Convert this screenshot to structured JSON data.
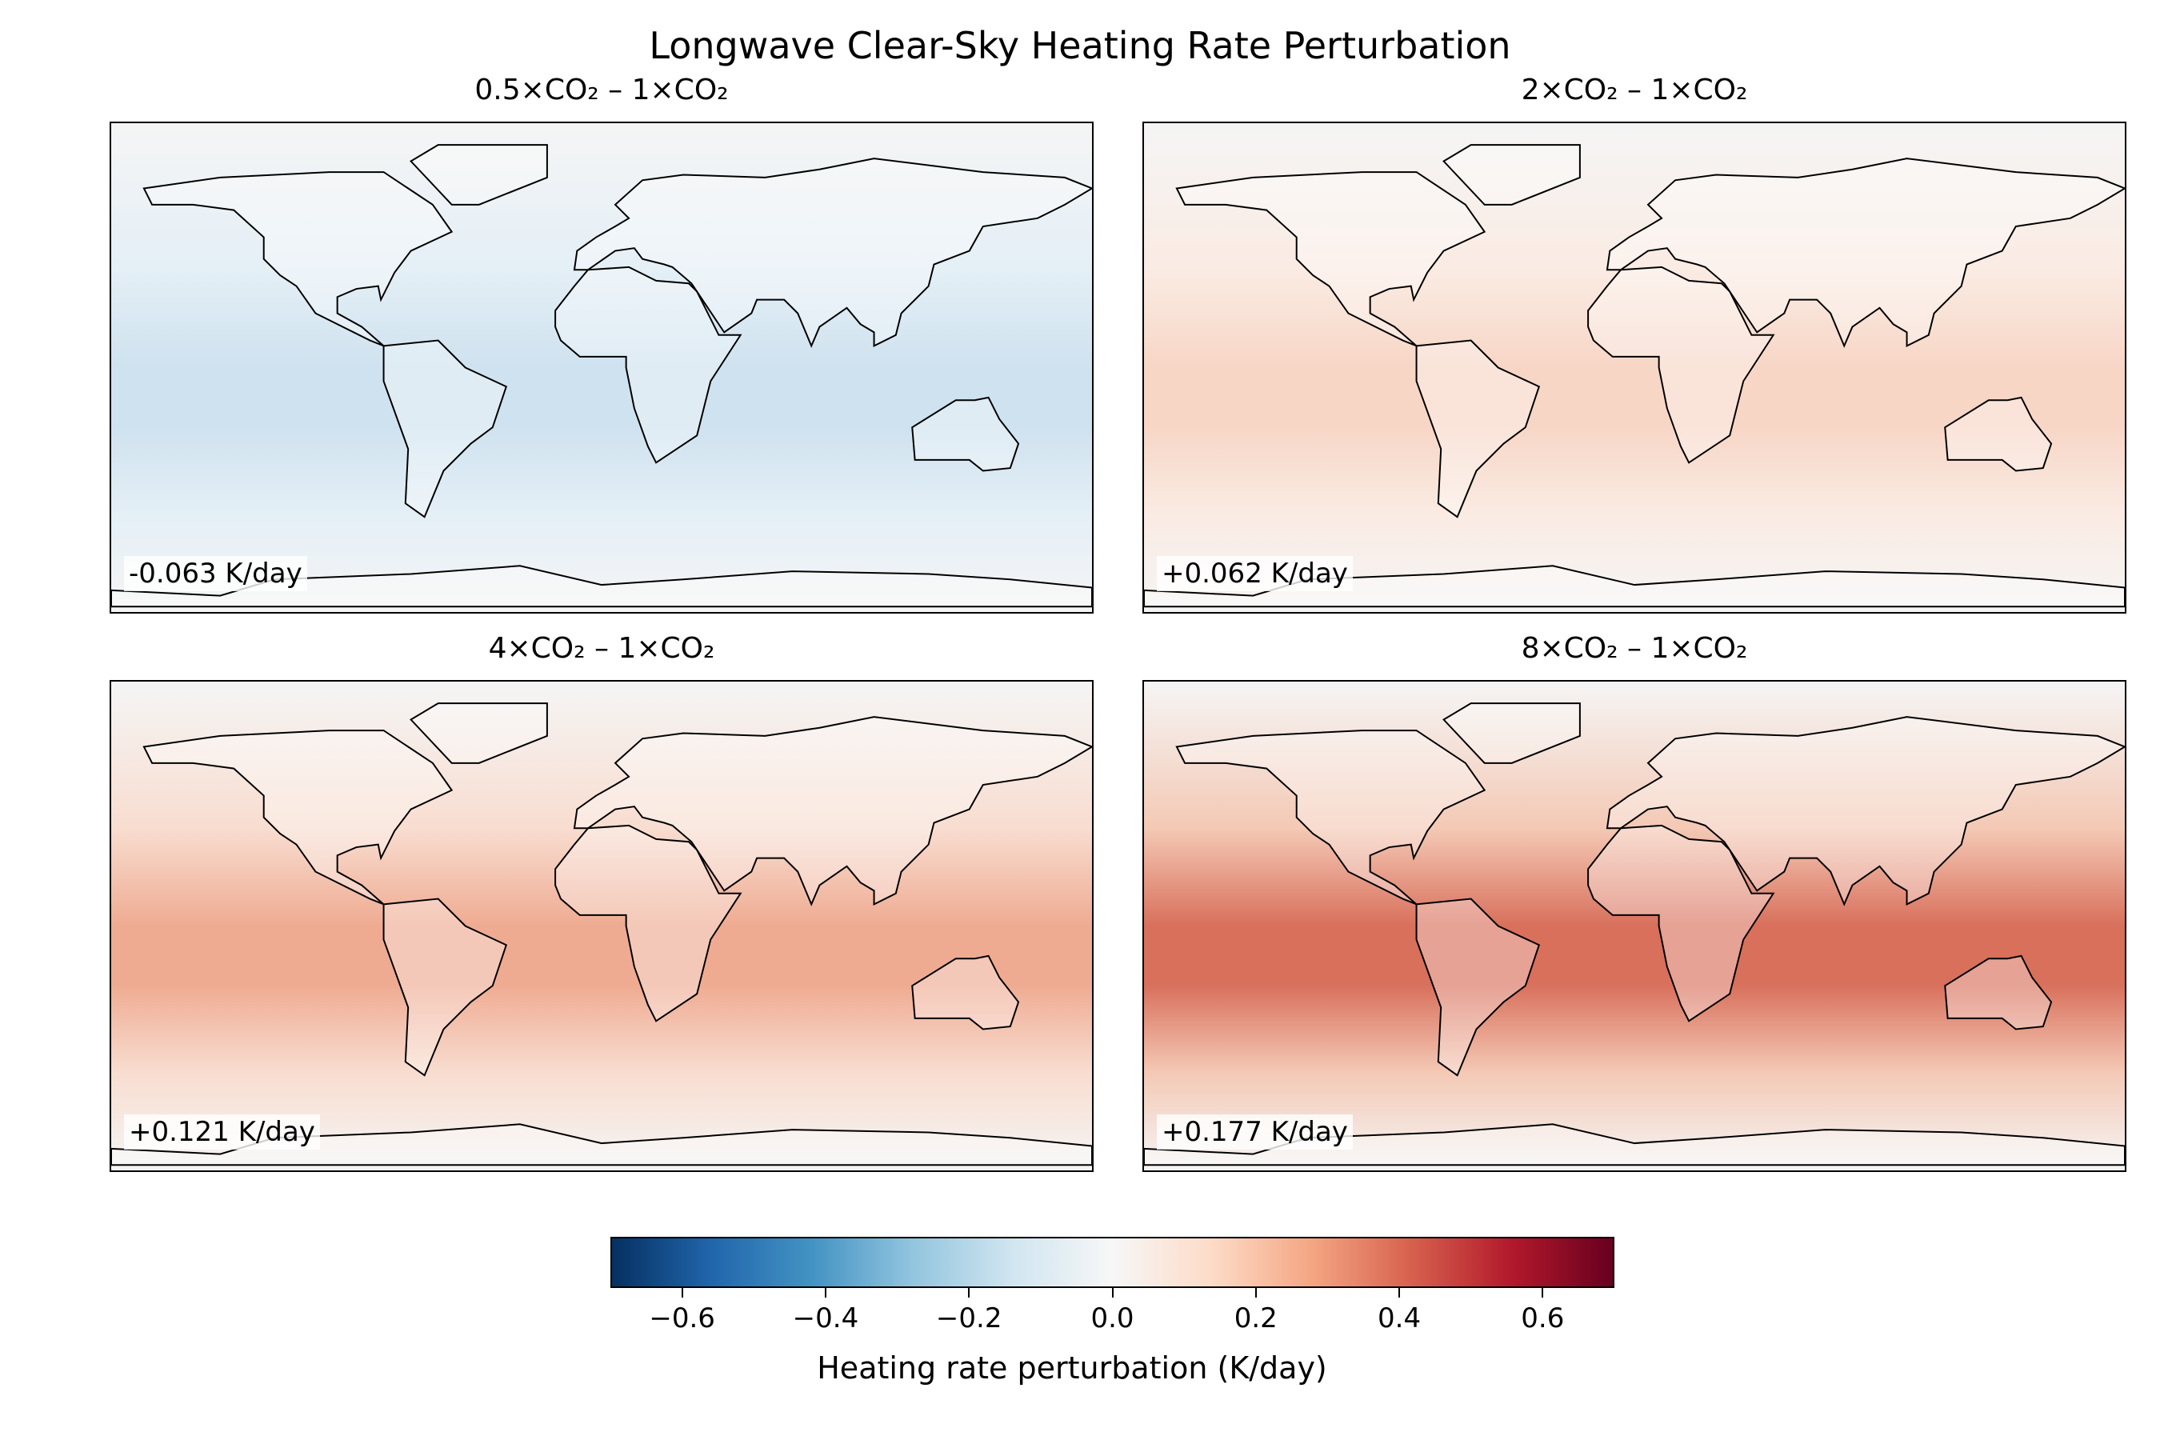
{
  "chart_data": {
    "type": "heatmap",
    "title": "Longwave Clear-Sky Heating Rate Perturbation",
    "panels": [
      {
        "title": "0.5×CO₂ – 1×CO₂",
        "annotation": "-0.063 K/day",
        "global_mean": -0.063,
        "tint": "#e4eff6",
        "tropics": "#cfe2ef"
      },
      {
        "title": "2×CO₂ – 1×CO₂",
        "annotation": "+0.062 K/day",
        "global_mean": 0.062,
        "tint": "#faebe3",
        "tropics": "#f7d6c6"
      },
      {
        "title": "4×CO₂ – 1×CO₂",
        "annotation": "+0.121 K/day",
        "global_mean": 0.121,
        "tint": "#f8ddd0",
        "tropics": "#efab92"
      },
      {
        "title": "8×CO₂ – 1×CO₂",
        "annotation": "+0.177 K/day",
        "global_mean": 0.177,
        "tint": "#f4c9b5",
        "tropics": "#d8705c"
      }
    ],
    "colorbar": {
      "label": "Heating rate perturbation (K/day)",
      "range": [
        -0.7,
        0.7
      ],
      "colormap": "RdBu_r",
      "ticks": [
        -0.6,
        -0.4,
        -0.2,
        0.0,
        0.2,
        0.4,
        0.6
      ],
      "tick_labels": [
        "−0.6",
        "−0.4",
        "−0.2",
        "0.0",
        "0.2",
        "0.4",
        "0.6"
      ]
    }
  }
}
